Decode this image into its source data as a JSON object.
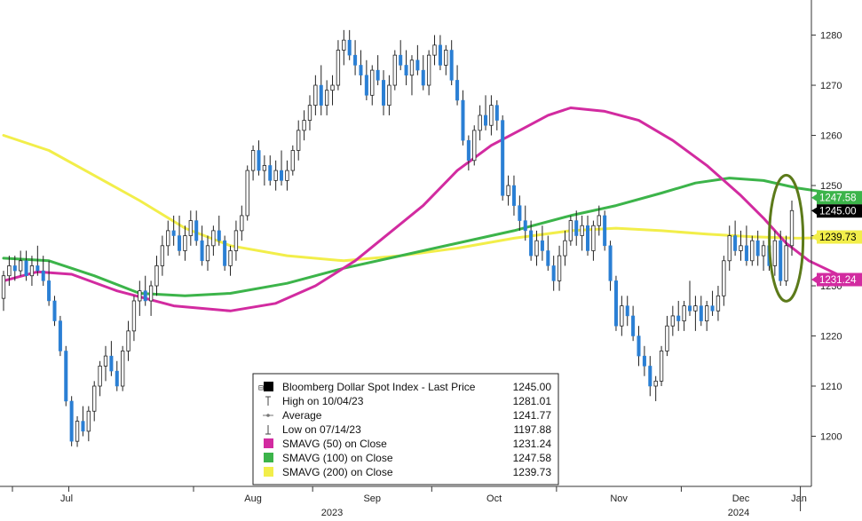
{
  "chart_data": {
    "type": "candlestick",
    "title": "",
    "xlabel": "",
    "ylabel": "",
    "ylim": [
      1190,
      1287
    ],
    "y_ticks": [
      1200,
      1210,
      1220,
      1230,
      1240,
      1250,
      1260,
      1270,
      1280
    ],
    "x_months": [
      "Jul",
      "Aug",
      "Sep",
      "Oct",
      "Nov",
      "Dec",
      "Jan"
    ],
    "x_years": [
      "2023",
      "2024"
    ],
    "grid": false,
    "colors": {
      "up": "#ffffff",
      "down": "#2a7fd4",
      "wick": "#222222",
      "sma50": "#d22ba0",
      "sma100": "#3cb44a",
      "sma200": "#f2ee4a",
      "highlight": "#5c7a1a"
    },
    "candles": [
      {
        "o": 1227.5,
        "h": 1233,
        "l": 1225,
        "c": 1232
      },
      {
        "o": 1232,
        "h": 1236,
        "l": 1230,
        "c": 1234
      },
      {
        "o": 1234,
        "h": 1236,
        "l": 1231,
        "c": 1233
      },
      {
        "o": 1233,
        "h": 1237,
        "l": 1232,
        "c": 1235
      },
      {
        "o": 1235,
        "h": 1237,
        "l": 1231,
        "c": 1232
      },
      {
        "o": 1232,
        "h": 1236,
        "l": 1230,
        "c": 1234
      },
      {
        "o": 1234,
        "h": 1238,
        "l": 1232,
        "c": 1233
      },
      {
        "o": 1233,
        "h": 1236,
        "l": 1230,
        "c": 1231
      },
      {
        "o": 1231,
        "h": 1235,
        "l": 1226,
        "c": 1227
      },
      {
        "o": 1227,
        "h": 1228,
        "l": 1222,
        "c": 1223
      },
      {
        "o": 1223,
        "h": 1224,
        "l": 1216,
        "c": 1217
      },
      {
        "o": 1217,
        "h": 1218,
        "l": 1206,
        "c": 1207
      },
      {
        "o": 1207,
        "h": 1208,
        "l": 1198,
        "c": 1199
      },
      {
        "o": 1199,
        "h": 1204,
        "l": 1197.88,
        "c": 1203
      },
      {
        "o": 1203,
        "h": 1206,
        "l": 1200,
        "c": 1201
      },
      {
        "o": 1201,
        "h": 1206,
        "l": 1199,
        "c": 1205
      },
      {
        "o": 1205,
        "h": 1211,
        "l": 1203,
        "c": 1210
      },
      {
        "o": 1210,
        "h": 1215,
        "l": 1208,
        "c": 1214
      },
      {
        "o": 1214,
        "h": 1218,
        "l": 1211,
        "c": 1216
      },
      {
        "o": 1216,
        "h": 1219,
        "l": 1212,
        "c": 1213
      },
      {
        "o": 1213,
        "h": 1215,
        "l": 1209,
        "c": 1210
      },
      {
        "o": 1210,
        "h": 1218,
        "l": 1209,
        "c": 1217
      },
      {
        "o": 1217,
        "h": 1223,
        "l": 1215,
        "c": 1221
      },
      {
        "o": 1221,
        "h": 1228,
        "l": 1219,
        "c": 1227
      },
      {
        "o": 1227,
        "h": 1231,
        "l": 1224,
        "c": 1229
      },
      {
        "o": 1229,
        "h": 1232,
        "l": 1226,
        "c": 1227
      },
      {
        "o": 1227,
        "h": 1231,
        "l": 1224,
        "c": 1230
      },
      {
        "o": 1230,
        "h": 1236,
        "l": 1228,
        "c": 1234
      },
      {
        "o": 1234,
        "h": 1240,
        "l": 1232,
        "c": 1238
      },
      {
        "o": 1238,
        "h": 1243,
        "l": 1236,
        "c": 1241
      },
      {
        "o": 1241,
        "h": 1244,
        "l": 1238,
        "c": 1240
      },
      {
        "o": 1240,
        "h": 1244,
        "l": 1236,
        "c": 1237
      },
      {
        "o": 1237,
        "h": 1242,
        "l": 1235,
        "c": 1240
      },
      {
        "o": 1240,
        "h": 1245,
        "l": 1238,
        "c": 1243
      },
      {
        "o": 1243,
        "h": 1245,
        "l": 1238,
        "c": 1239
      },
      {
        "o": 1239,
        "h": 1242,
        "l": 1234,
        "c": 1235
      },
      {
        "o": 1235,
        "h": 1240,
        "l": 1233,
        "c": 1238
      },
      {
        "o": 1238,
        "h": 1242,
        "l": 1236,
        "c": 1241
      },
      {
        "o": 1241,
        "h": 1244,
        "l": 1238,
        "c": 1239
      },
      {
        "o": 1239,
        "h": 1240,
        "l": 1233,
        "c": 1234
      },
      {
        "o": 1234,
        "h": 1238,
        "l": 1232,
        "c": 1237
      },
      {
        "o": 1237,
        "h": 1243,
        "l": 1235,
        "c": 1241
      },
      {
        "o": 1241,
        "h": 1246,
        "l": 1239,
        "c": 1244
      },
      {
        "o": 1244,
        "h": 1254,
        "l": 1243,
        "c": 1253
      },
      {
        "o": 1253,
        "h": 1258,
        "l": 1251,
        "c": 1257
      },
      {
        "o": 1257,
        "h": 1259,
        "l": 1252,
        "c": 1253
      },
      {
        "o": 1253,
        "h": 1256,
        "l": 1250,
        "c": 1254
      },
      {
        "o": 1254,
        "h": 1256,
        "l": 1250,
        "c": 1251
      },
      {
        "o": 1251,
        "h": 1255,
        "l": 1249,
        "c": 1253
      },
      {
        "o": 1253,
        "h": 1257,
        "l": 1250,
        "c": 1251
      },
      {
        "o": 1251,
        "h": 1255,
        "l": 1249,
        "c": 1253
      },
      {
        "o": 1253,
        "h": 1258,
        "l": 1252,
        "c": 1257
      },
      {
        "o": 1257,
        "h": 1263,
        "l": 1255,
        "c": 1261
      },
      {
        "o": 1261,
        "h": 1265,
        "l": 1259,
        "c": 1263
      },
      {
        "o": 1263,
        "h": 1268,
        "l": 1261,
        "c": 1266
      },
      {
        "o": 1266,
        "h": 1272,
        "l": 1264,
        "c": 1270
      },
      {
        "o": 1270,
        "h": 1274,
        "l": 1264,
        "c": 1266
      },
      {
        "o": 1266,
        "h": 1271,
        "l": 1264,
        "c": 1269
      },
      {
        "o": 1269,
        "h": 1272,
        "l": 1266,
        "c": 1270
      },
      {
        "o": 1270,
        "h": 1279,
        "l": 1269,
        "c": 1277
      },
      {
        "o": 1277,
        "h": 1281.01,
        "l": 1274,
        "c": 1279
      },
      {
        "o": 1279,
        "h": 1281,
        "l": 1275,
        "c": 1276
      },
      {
        "o": 1276,
        "h": 1279,
        "l": 1272,
        "c": 1274
      },
      {
        "o": 1274,
        "h": 1277,
        "l": 1270,
        "c": 1272
      },
      {
        "o": 1272,
        "h": 1275,
        "l": 1267,
        "c": 1268
      },
      {
        "o": 1268,
        "h": 1274,
        "l": 1266,
        "c": 1273
      },
      {
        "o": 1273,
        "h": 1276,
        "l": 1270,
        "c": 1271
      },
      {
        "o": 1271,
        "h": 1273,
        "l": 1264,
        "c": 1266
      },
      {
        "o": 1266,
        "h": 1272,
        "l": 1264,
        "c": 1270
      },
      {
        "o": 1270,
        "h": 1277,
        "l": 1269,
        "c": 1276
      },
      {
        "o": 1276,
        "h": 1279,
        "l": 1273,
        "c": 1274
      },
      {
        "o": 1274,
        "h": 1277,
        "l": 1270,
        "c": 1272
      },
      {
        "o": 1272,
        "h": 1276,
        "l": 1268,
        "c": 1275
      },
      {
        "o": 1275,
        "h": 1278,
        "l": 1272,
        "c": 1273
      },
      {
        "o": 1273,
        "h": 1276,
        "l": 1269,
        "c": 1270
      },
      {
        "o": 1270,
        "h": 1277,
        "l": 1268,
        "c": 1276
      },
      {
        "o": 1276,
        "h": 1280,
        "l": 1274,
        "c": 1278
      },
      {
        "o": 1278,
        "h": 1280,
        "l": 1273,
        "c": 1274
      },
      {
        "o": 1274,
        "h": 1278,
        "l": 1272,
        "c": 1277
      },
      {
        "o": 1277,
        "h": 1279,
        "l": 1270,
        "c": 1271
      },
      {
        "o": 1271,
        "h": 1274,
        "l": 1266,
        "c": 1267
      },
      {
        "o": 1267,
        "h": 1269,
        "l": 1258,
        "c": 1259
      },
      {
        "o": 1259,
        "h": 1260,
        "l": 1253,
        "c": 1255
      },
      {
        "o": 1255,
        "h": 1262,
        "l": 1254,
        "c": 1261
      },
      {
        "o": 1261,
        "h": 1266,
        "l": 1259,
        "c": 1264
      },
      {
        "o": 1264,
        "h": 1268,
        "l": 1261,
        "c": 1262
      },
      {
        "o": 1262,
        "h": 1268,
        "l": 1260,
        "c": 1266
      },
      {
        "o": 1266,
        "h": 1267,
        "l": 1261,
        "c": 1263
      },
      {
        "o": 1263,
        "h": 1264,
        "l": 1247,
        "c": 1248
      },
      {
        "o": 1248,
        "h": 1252,
        "l": 1246,
        "c": 1250
      },
      {
        "o": 1250,
        "h": 1252,
        "l": 1244,
        "c": 1246
      },
      {
        "o": 1246,
        "h": 1248,
        "l": 1241,
        "c": 1243
      },
      {
        "o": 1243,
        "h": 1246,
        "l": 1239,
        "c": 1241
      },
      {
        "o": 1241,
        "h": 1243,
        "l": 1235,
        "c": 1236
      },
      {
        "o": 1236,
        "h": 1241,
        "l": 1234,
        "c": 1239
      },
      {
        "o": 1239,
        "h": 1242,
        "l": 1235,
        "c": 1237
      },
      {
        "o": 1237,
        "h": 1240,
        "l": 1233,
        "c": 1234
      },
      {
        "o": 1234,
        "h": 1236,
        "l": 1229,
        "c": 1231
      },
      {
        "o": 1231,
        "h": 1238,
        "l": 1229,
        "c": 1236
      },
      {
        "o": 1236,
        "h": 1241,
        "l": 1234,
        "c": 1239
      },
      {
        "o": 1239,
        "h": 1244,
        "l": 1238,
        "c": 1243
      },
      {
        "o": 1243,
        "h": 1245,
        "l": 1238,
        "c": 1240
      },
      {
        "o": 1240,
        "h": 1244,
        "l": 1237,
        "c": 1242
      },
      {
        "o": 1242,
        "h": 1244,
        "l": 1236,
        "c": 1237
      },
      {
        "o": 1237,
        "h": 1243,
        "l": 1235,
        "c": 1242
      },
      {
        "o": 1242,
        "h": 1246,
        "l": 1240,
        "c": 1244
      },
      {
        "o": 1244,
        "h": 1245,
        "l": 1237,
        "c": 1238
      },
      {
        "o": 1238,
        "h": 1239,
        "l": 1229,
        "c": 1231
      },
      {
        "o": 1231,
        "h": 1232,
        "l": 1221,
        "c": 1222
      },
      {
        "o": 1222,
        "h": 1228,
        "l": 1220,
        "c": 1226
      },
      {
        "o": 1226,
        "h": 1228,
        "l": 1222,
        "c": 1224
      },
      {
        "o": 1224,
        "h": 1226,
        "l": 1219,
        "c": 1220
      },
      {
        "o": 1220,
        "h": 1222,
        "l": 1214,
        "c": 1216
      },
      {
        "o": 1216,
        "h": 1218,
        "l": 1212,
        "c": 1214
      },
      {
        "o": 1214,
        "h": 1216,
        "l": 1208,
        "c": 1210
      },
      {
        "o": 1210,
        "h": 1212,
        "l": 1207,
        "c": 1211
      },
      {
        "o": 1211,
        "h": 1218,
        "l": 1210,
        "c": 1217
      },
      {
        "o": 1217,
        "h": 1224,
        "l": 1216,
        "c": 1222
      },
      {
        "o": 1222,
        "h": 1226,
        "l": 1220,
        "c": 1224
      },
      {
        "o": 1224,
        "h": 1227,
        "l": 1221,
        "c": 1223
      },
      {
        "o": 1223,
        "h": 1227,
        "l": 1221,
        "c": 1226
      },
      {
        "o": 1226,
        "h": 1231,
        "l": 1224,
        "c": 1225
      },
      {
        "o": 1225,
        "h": 1228,
        "l": 1221,
        "c": 1226
      },
      {
        "o": 1226,
        "h": 1228,
        "l": 1222,
        "c": 1223
      },
      {
        "o": 1223,
        "h": 1227,
        "l": 1221,
        "c": 1226
      },
      {
        "o": 1226,
        "h": 1229,
        "l": 1224,
        "c": 1225
      },
      {
        "o": 1225,
        "h": 1230,
        "l": 1223,
        "c": 1228
      },
      {
        "o": 1228,
        "h": 1236,
        "l": 1226,
        "c": 1235
      },
      {
        "o": 1235,
        "h": 1242,
        "l": 1233,
        "c": 1240
      },
      {
        "o": 1240,
        "h": 1243,
        "l": 1236,
        "c": 1237
      },
      {
        "o": 1237,
        "h": 1241,
        "l": 1235,
        "c": 1238
      },
      {
        "o": 1238,
        "h": 1242,
        "l": 1234,
        "c": 1235
      },
      {
        "o": 1235,
        "h": 1240,
        "l": 1234,
        "c": 1239
      },
      {
        "o": 1239,
        "h": 1241,
        "l": 1234,
        "c": 1236
      },
      {
        "o": 1236,
        "h": 1239,
        "l": 1233,
        "c": 1238
      },
      {
        "o": 1238,
        "h": 1240,
        "l": 1233,
        "c": 1234
      },
      {
        "o": 1234,
        "h": 1241,
        "l": 1232,
        "c": 1239
      },
      {
        "o": 1239,
        "h": 1241,
        "l": 1230,
        "c": 1231
      },
      {
        "o": 1231,
        "h": 1240,
        "l": 1230,
        "c": 1238
      },
      {
        "o": 1238,
        "h": 1247,
        "l": 1236,
        "c": 1245
      }
    ],
    "sma50": [
      [
        0,
        1231
      ],
      [
        6,
        1232.8
      ],
      [
        12,
        1232.3
      ],
      [
        20,
        1229
      ],
      [
        30,
        1226
      ],
      [
        40,
        1225
      ],
      [
        48,
        1226.5
      ],
      [
        55,
        1230
      ],
      [
        62,
        1235
      ],
      [
        68,
        1240.5
      ],
      [
        74,
        1246
      ],
      [
        80,
        1253
      ],
      [
        86,
        1258
      ],
      [
        91,
        1261
      ],
      [
        96,
        1264
      ],
      [
        100,
        1265.5
      ],
      [
        106,
        1264.8
      ],
      [
        112,
        1263
      ],
      [
        118,
        1259
      ],
      [
        124,
        1254
      ],
      [
        130,
        1248
      ],
      [
        134,
        1243.5
      ],
      [
        138,
        1238.5
      ],
      [
        142,
        1235
      ],
      [
        147,
        1232.3
      ],
      [
        150,
        1231
      ],
      [
        152,
        1231.24
      ]
    ],
    "sma100": [
      [
        0,
        1235.5
      ],
      [
        8,
        1235
      ],
      [
        16,
        1232
      ],
      [
        24,
        1228.5
      ],
      [
        32,
        1228
      ],
      [
        40,
        1228.5
      ],
      [
        50,
        1230.5
      ],
      [
        60,
        1233.5
      ],
      [
        70,
        1236
      ],
      [
        80,
        1238.5
      ],
      [
        90,
        1241
      ],
      [
        100,
        1244
      ],
      [
        108,
        1246
      ],
      [
        116,
        1248.5
      ],
      [
        122,
        1250.5
      ],
      [
        128,
        1251.5
      ],
      [
        134,
        1251
      ],
      [
        140,
        1249.5
      ],
      [
        146,
        1248.5
      ],
      [
        150,
        1248
      ],
      [
        152,
        1247.58
      ]
    ],
    "sma200": [
      [
        0,
        1260
      ],
      [
        8,
        1257
      ],
      [
        16,
        1252
      ],
      [
        24,
        1247
      ],
      [
        32,
        1241.5
      ],
      [
        40,
        1238
      ],
      [
        50,
        1236
      ],
      [
        60,
        1235
      ],
      [
        70,
        1236
      ],
      [
        80,
        1237.5
      ],
      [
        90,
        1239.5
      ],
      [
        100,
        1241
      ],
      [
        108,
        1241.5
      ],
      [
        116,
        1241
      ],
      [
        124,
        1240.3
      ],
      [
        132,
        1239.8
      ],
      [
        140,
        1239.5
      ],
      [
        146,
        1239.6
      ],
      [
        150,
        1239.7
      ],
      [
        152,
        1239.73
      ]
    ],
    "month_starts": [
      12,
      34,
      55,
      76,
      98,
      120,
      141
    ],
    "year_positions": [
      55,
      141
    ],
    "last_price": 1245.0,
    "price_tags": [
      {
        "series": "sma100",
        "value": 1247.58,
        "label": "1247.58",
        "bg": "#3cb44a",
        "fg": "#ffffff"
      },
      {
        "series": "price",
        "value": 1245.0,
        "label": "1245.00",
        "bg": "#000000",
        "fg": "#ffffff"
      },
      {
        "series": "sma200",
        "value": 1239.73,
        "label": "1239.73",
        "bg": "#f2ee4a",
        "fg": "#000000"
      },
      {
        "series": "sma50",
        "value": 1231.24,
        "label": "1231.24",
        "bg": "#d22ba0",
        "fg": "#ffffff"
      }
    ],
    "legend": [
      {
        "label": "Bloomberg Dollar Spot Index - Last Price",
        "value": "1245.00",
        "marker": "price-square",
        "color": "#000000"
      },
      {
        "label": "High on 10/04/23",
        "value": "1281.01",
        "marker": "high-line",
        "color": "#444444"
      },
      {
        "label": "Average",
        "value": "1241.77",
        "marker": "avg-line",
        "color": "#777777"
      },
      {
        "label": "Low on 07/14/23",
        "value": "1197.88",
        "marker": "low-line",
        "color": "#444444"
      },
      {
        "label": "SMAVG (50)  on Close",
        "value": "1231.24",
        "marker": "series-square",
        "color": "#d22ba0"
      },
      {
        "label": "SMAVG (100)  on Close",
        "value": "1247.58",
        "marker": "series-square",
        "color": "#3cb44a"
      },
      {
        "label": "SMAVG (200)  on Close",
        "value": "1239.73",
        "marker": "series-square",
        "color": "#f2ee4a"
      }
    ]
  }
}
